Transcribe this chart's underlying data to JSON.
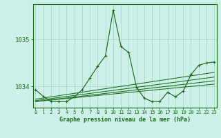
{
  "title": "Graphe pression niveau de la mer (hPa)",
  "bg_color": "#cdf0e8",
  "grid_color": "#a8d8c8",
  "line_color": "#1a6b1a",
  "x_ticks": [
    0,
    1,
    2,
    3,
    4,
    5,
    6,
    7,
    8,
    9,
    10,
    11,
    12,
    13,
    14,
    15,
    16,
    17,
    18,
    19,
    20,
    21,
    22,
    23
  ],
  "y_ticks": [
    1034,
    1035
  ],
  "ylim": [
    1033.55,
    1035.75
  ],
  "xlim": [
    -0.3,
    23.3
  ],
  "series_main": [
    [
      0,
      1033.93
    ],
    [
      1,
      1033.79
    ],
    [
      2,
      1033.68
    ],
    [
      3,
      1033.68
    ],
    [
      4,
      1033.68
    ],
    [
      5,
      1033.78
    ],
    [
      6,
      1033.93
    ],
    [
      7,
      1034.18
    ],
    [
      8,
      1034.43
    ],
    [
      9,
      1034.65
    ],
    [
      10,
      1035.62
    ],
    [
      11,
      1034.85
    ],
    [
      12,
      1034.72
    ],
    [
      13,
      1033.98
    ],
    [
      14,
      1033.75
    ],
    [
      15,
      1033.68
    ],
    [
      16,
      1033.68
    ],
    [
      17,
      1033.88
    ],
    [
      18,
      1033.78
    ],
    [
      19,
      1033.9
    ],
    [
      20,
      1034.25
    ],
    [
      21,
      1034.45
    ],
    [
      22,
      1034.5
    ],
    [
      23,
      1034.52
    ]
  ],
  "series_trend1": [
    [
      0,
      1033.68
    ],
    [
      23,
      1034.05
    ]
  ],
  "series_trend2": [
    [
      0,
      1033.68
    ],
    [
      23,
      1034.12
    ]
  ],
  "series_trend3": [
    [
      0,
      1033.7
    ],
    [
      23,
      1034.2
    ]
  ],
  "series_trend4": [
    [
      0,
      1033.73
    ],
    [
      23,
      1034.3
    ]
  ]
}
